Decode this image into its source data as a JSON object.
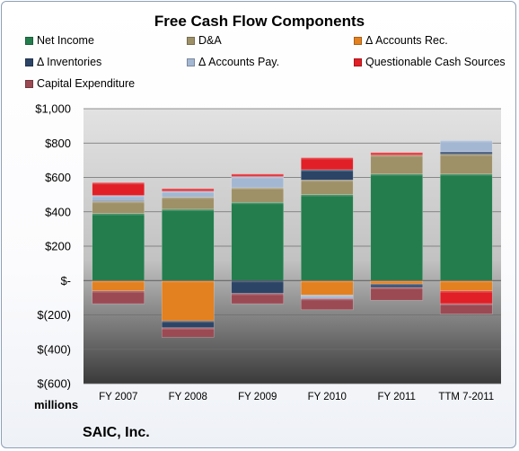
{
  "chart_data": {
    "type": "bar",
    "stacked": true,
    "title": "Free Cash Flow Components",
    "ylabel": "millions",
    "ylim": [
      -600,
      1000
    ],
    "yticks": [
      1000,
      800,
      600,
      400,
      200,
      0,
      -200,
      -400,
      -600
    ],
    "ytick_labels": [
      "$1,000",
      "$800",
      "$600",
      "$400",
      "$200",
      "$-",
      "$(200)",
      "$(400)",
      "$(600)"
    ],
    "categories": [
      "FY 2007",
      "FY 2008",
      "FY 2009",
      "FY 2010",
      "FY 2011",
      "TTM 7-2011"
    ],
    "legend_position": "top",
    "grid": true,
    "series": [
      {
        "name": "Net Income",
        "color": "#237d4c",
        "values": [
          390,
          415,
          455,
          500,
          620,
          620
        ]
      },
      {
        "name": "D&A",
        "color": "#9e9067",
        "values": [
          70,
          70,
          85,
          85,
          110,
          115
        ]
      },
      {
        "name": "Δ Accounts Rec.",
        "color": "#e3801f",
        "values": [
          -60,
          -235,
          0,
          -85,
          -20,
          -60
        ]
      },
      {
        "name": "Δ Inventories",
        "color": "#2c4466",
        "values": [
          5,
          -40,
          -75,
          60,
          -20,
          15
        ]
      },
      {
        "name": "Δ Accounts Pay.",
        "color": "#a4b7d2",
        "values": [
          30,
          35,
          65,
          -20,
          0,
          65
        ]
      },
      {
        "name": "Questionable Cash Sources",
        "color": "#e11f26",
        "values": [
          75,
          15,
          15,
          70,
          15,
          -75
        ]
      },
      {
        "name": "Capital Expenditure",
        "color": "#9b4a54",
        "values": [
          -75,
          -55,
          -60,
          -65,
          -75,
          -60
        ]
      }
    ]
  },
  "footer": {
    "company": "SAIC, Inc."
  }
}
